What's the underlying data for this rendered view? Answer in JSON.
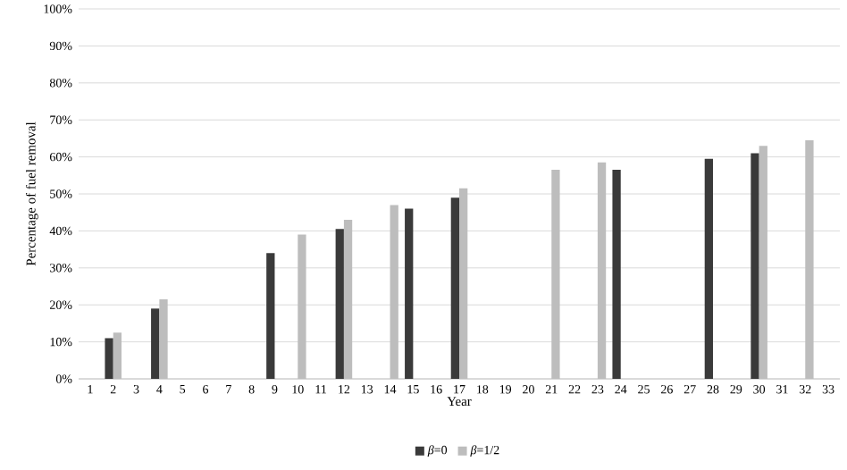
{
  "chart_data": {
    "type": "bar",
    "xlabel": "Year",
    "ylabel": "Percentage of fuel removal",
    "categories": [
      "1",
      "2",
      "3",
      "4",
      "5",
      "6",
      "7",
      "8",
      "9",
      "10",
      "11",
      "12",
      "13",
      "14",
      "15",
      "16",
      "17",
      "18",
      "19",
      "20",
      "21",
      "22",
      "23",
      "24",
      "25",
      "26",
      "27",
      "28",
      "29",
      "30",
      "31",
      "32",
      "33"
    ],
    "series": [
      {
        "name": "*β*=0",
        "color": "#3a3a3a",
        "values": [
          null,
          11,
          null,
          19,
          null,
          null,
          null,
          null,
          34,
          null,
          null,
          40.5,
          null,
          null,
          46,
          null,
          49,
          null,
          null,
          null,
          null,
          null,
          null,
          56.5,
          null,
          null,
          null,
          59.5,
          null,
          61,
          null,
          null,
          null
        ]
      },
      {
        "name": "*β*=1/2",
        "color": "#bdbdbd",
        "values": [
          null,
          12.5,
          null,
          21.5,
          null,
          null,
          null,
          null,
          null,
          39,
          null,
          43,
          null,
          47,
          null,
          null,
          51.5,
          null,
          null,
          null,
          56.5,
          null,
          58.5,
          null,
          null,
          null,
          null,
          null,
          null,
          63,
          null,
          64.5,
          null
        ]
      }
    ],
    "ylim": [
      0,
      100
    ],
    "yticks": [
      {
        "value": 0,
        "label": "0%"
      },
      {
        "value": 10,
        "label": "10%"
      },
      {
        "value": 20,
        "label": "20%"
      },
      {
        "value": 30,
        "label": "30%"
      },
      {
        "value": 40,
        "label": "40%"
      },
      {
        "value": 50,
        "label": "50%"
      },
      {
        "value": 60,
        "label": "60%"
      },
      {
        "value": 70,
        "label": "70%"
      },
      {
        "value": 80,
        "label": "80%"
      },
      {
        "value": 90,
        "label": "90%"
      },
      {
        "value": 100,
        "label": "100%"
      }
    ],
    "grid": "y",
    "legend": "bottom"
  }
}
